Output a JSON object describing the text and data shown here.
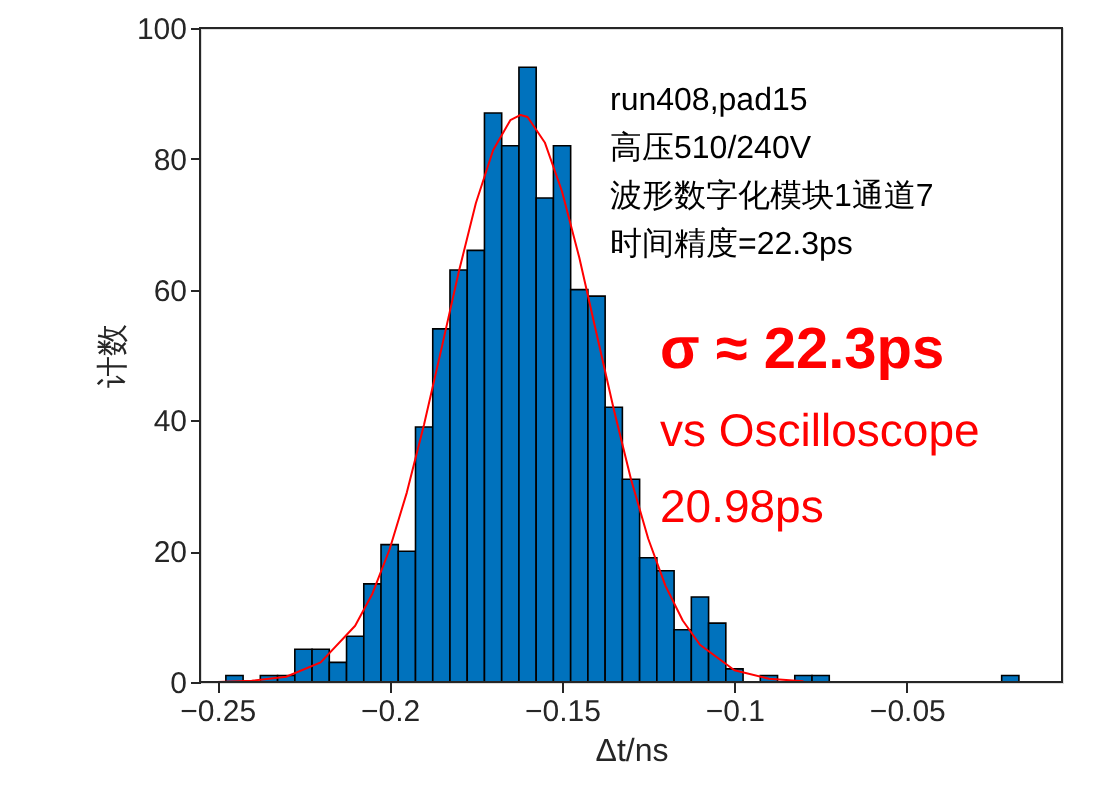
{
  "chart_data": {
    "type": "histogram",
    "xlabel": "Δt/ns",
    "ylabel": "计数",
    "bins": [
      -0.2475,
      -0.2425,
      -0.2375,
      -0.2325,
      -0.2275,
      -0.2225,
      -0.2175,
      -0.2125,
      -0.2075,
      -0.2025,
      -0.1975,
      -0.1925,
      -0.1875,
      -0.1825,
      -0.1775,
      -0.1725,
      -0.1675,
      -0.1625,
      -0.1575,
      -0.1525,
      -0.1475,
      -0.1425,
      -0.1375,
      -0.1325,
      -0.1275,
      -0.1225,
      -0.1175,
      -0.1125,
      -0.1075,
      -0.1025,
      -0.0975,
      -0.0925,
      -0.0875,
      -0.0825,
      -0.0775,
      -0.0725,
      -0.0675,
      -0.0625,
      -0.0575,
      -0.0525,
      -0.0475,
      -0.0425,
      -0.0375,
      -0.0325,
      -0.0275,
      -0.0225,
      -0.0175
    ],
    "values": [
      1,
      0,
      1,
      1,
      5,
      5,
      3,
      7,
      15,
      21,
      20,
      39,
      54,
      63,
      66,
      87,
      82,
      94,
      74,
      82,
      60,
      59,
      42,
      31,
      19,
      17,
      8,
      13,
      9,
      2,
      0,
      1,
      0,
      1,
      1,
      0,
      0,
      0,
      0,
      0,
      0,
      0,
      0,
      0,
      0,
      1
    ],
    "color": "#0072bd",
    "series": [
      {
        "type": "line",
        "color": "#ff0000",
        "x": [
          -0.25,
          -0.24,
          -0.23,
          -0.22,
          -0.21,
          -0.205,
          -0.2,
          -0.195,
          -0.19,
          -0.185,
          -0.18,
          -0.175,
          -0.17,
          -0.165,
          -0.162,
          -0.16,
          -0.155,
          -0.15,
          -0.145,
          -0.14,
          -0.135,
          -0.13,
          -0.125,
          -0.12,
          -0.115,
          -0.11,
          -0.1,
          -0.09,
          -0.08
        ],
        "values": [
          0,
          0.2,
          0.8,
          3,
          8.6,
          13.5,
          20.3,
          29,
          39.4,
          50.9,
          62.6,
          73.2,
          81.3,
          85.9,
          86.7,
          86.4,
          82.5,
          75,
          64.9,
          53.3,
          41.7,
          31,
          21.9,
          14.7,
          9.4,
          5.7,
          1.8,
          0.5,
          0.1
        ]
      }
    ],
    "xlim": [
      -0.255,
      -0.005
    ],
    "ylim": [
      0,
      100
    ],
    "xticks": [
      -0.25,
      -0.2,
      -0.15,
      -0.1,
      -0.05
    ],
    "yticks": [
      0,
      20,
      40,
      60,
      80,
      100
    ],
    "grid": false,
    "annotations": [
      "run408,pad15",
      "高压510/240V",
      "波形数字化模块1通道7",
      "时间精度=22.3ps",
      "σ ≈ 22.3ps",
      "vs Oscilloscope",
      "20.98ps"
    ]
  }
}
